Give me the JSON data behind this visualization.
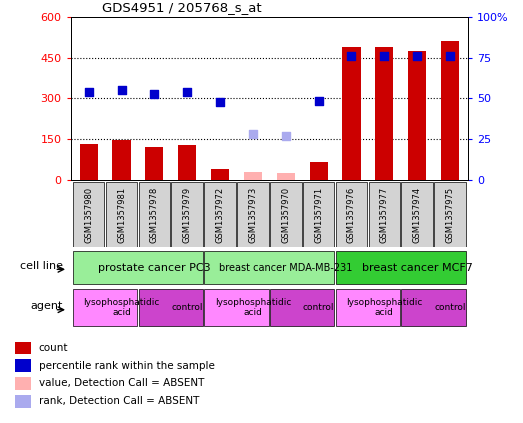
{
  "title": "GDS4951 / 205768_s_at",
  "samples": [
    "GSM1357980",
    "GSM1357981",
    "GSM1357978",
    "GSM1357979",
    "GSM1357972",
    "GSM1357973",
    "GSM1357970",
    "GSM1357971",
    "GSM1357976",
    "GSM1357977",
    "GSM1357974",
    "GSM1357975"
  ],
  "counts": [
    130,
    148,
    122,
    128,
    40,
    null,
    null,
    65,
    490,
    490,
    475,
    510
  ],
  "counts_absent": [
    null,
    null,
    null,
    null,
    null,
    30,
    25,
    null,
    null,
    null,
    null,
    null
  ],
  "ranks": [
    325,
    330,
    315,
    325,
    285,
    null,
    null,
    290,
    null,
    null,
    null,
    null
  ],
  "ranks_absent": [
    null,
    null,
    null,
    null,
    null,
    170,
    162,
    null,
    null,
    null,
    null,
    null
  ],
  "ranks_mcf7": [
    null,
    null,
    null,
    null,
    null,
    null,
    null,
    null,
    455,
    455,
    455,
    455
  ],
  "cell_lines": [
    {
      "label": "prostate cancer PC3",
      "start": 0,
      "end": 4,
      "color": "#99ee99"
    },
    {
      "label": "breast cancer MDA-MB-231",
      "start": 4,
      "end": 8,
      "color": "#99ee99"
    },
    {
      "label": "breast cancer MCF7",
      "start": 8,
      "end": 12,
      "color": "#33cc33"
    }
  ],
  "agents": [
    {
      "label": "lysophosphatidic\nacid",
      "start": 0,
      "end": 2,
      "color": "#ff88ff"
    },
    {
      "label": "control",
      "start": 2,
      "end": 4,
      "color": "#cc44cc"
    },
    {
      "label": "lysophosphatidic\nacid",
      "start": 4,
      "end": 6,
      "color": "#ff88ff"
    },
    {
      "label": "control",
      "start": 6,
      "end": 8,
      "color": "#cc44cc"
    },
    {
      "label": "lysophosphatidic\nacid",
      "start": 8,
      "end": 10,
      "color": "#ff88ff"
    },
    {
      "label": "control",
      "start": 10,
      "end": 12,
      "color": "#cc44cc"
    }
  ],
  "bar_color_present": "#cc0000",
  "bar_color_absent": "#ffb0b0",
  "dot_color_present": "#0000cc",
  "dot_color_absent": "#aaaaee",
  "ylim_left": [
    0,
    600
  ],
  "ylim_right": [
    0,
    100
  ],
  "yticks_left": [
    0,
    150,
    300,
    450,
    600
  ],
  "yticks_right": [
    0,
    25,
    50,
    75,
    100
  ],
  "ytick_labels_right": [
    "0",
    "25",
    "50",
    "75",
    "100%"
  ]
}
